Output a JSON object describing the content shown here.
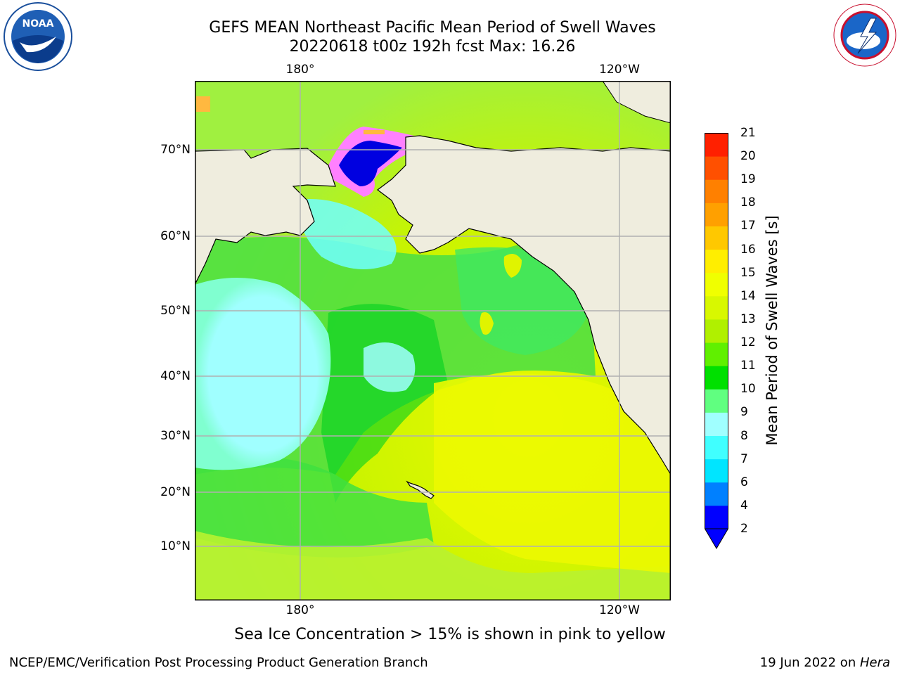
{
  "title": {
    "line1": "GEFS MEAN Northeast Pacific Mean Period of Swell Waves",
    "line2": "20220618 t00z 192h fcst   Max: 16.26"
  },
  "logos": {
    "left": {
      "name": "noaa-logo",
      "text": "NOAA"
    },
    "right": {
      "name": "nws-logo",
      "text": "NATIONAL WEATHER SERVICE"
    }
  },
  "map": {
    "top_lon_labels": [
      "180°",
      "120°W"
    ],
    "bottom_lon_labels": [
      "180°",
      "120°W"
    ],
    "lat_labels": [
      "70°N",
      "60°N",
      "50°N",
      "40°N",
      "30°N",
      "20°N",
      "10°N"
    ],
    "land_color": "#efedde",
    "grid_color": "#b0b0b0"
  },
  "colorbar": {
    "title": "Mean Period of Swell Waves [s]",
    "ticks": [
      "2",
      "4",
      "6",
      "7",
      "8",
      "9",
      "10",
      "11",
      "12",
      "13",
      "14",
      "15",
      "16",
      "17",
      "18",
      "19",
      "20",
      "21"
    ],
    "colors": [
      "#0000ff",
      "#0080ff",
      "#00e5ff",
      "#40ffff",
      "#a0ffff",
      "#60ff80",
      "#00e000",
      "#60f000",
      "#b0f000",
      "#d8f800",
      "#f0ff00",
      "#ffee00",
      "#ffc800",
      "#ffa000",
      "#ff8000",
      "#ff5000",
      "#ff2000"
    ],
    "extend_min_color": "#0000ff"
  },
  "note": "Sea Ice Concentration > 15% is shown in pink to yellow",
  "footer": {
    "left": "NCEP/EMC/Verification Post Processing Product Generation Branch",
    "right_prefix": "19 Jun 2022 on ",
    "right_italic": "Hera"
  }
}
